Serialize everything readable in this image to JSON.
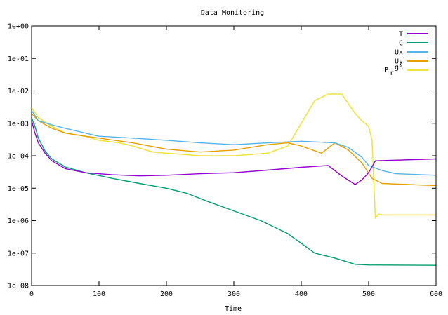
{
  "chart_data": {
    "type": "line",
    "title": "Data Monitoring",
    "xlabel": "Time",
    "ylabel": "",
    "xlim": [
      0,
      600
    ],
    "ylim": [
      1e-08,
      1
    ],
    "yscale": "log",
    "grid": false,
    "legend_position": "top-right",
    "x_ticks": [
      "0",
      "100",
      "200",
      "300",
      "400",
      "500",
      "600"
    ],
    "y_ticks": [
      "1e-08",
      "1e-07",
      "1e-06",
      "1e-05",
      "1e-04",
      "1e-03",
      "1e-02",
      "1e-01",
      "1e+00"
    ],
    "series": [
      {
        "name": "T",
        "color": "#9400d3",
        "x": [
          0,
          5,
          10,
          20,
          30,
          50,
          80,
          120,
          160,
          200,
          250,
          300,
          350,
          400,
          440,
          460,
          480,
          490,
          500,
          510,
          600
        ],
        "y": [
          0.0012,
          0.0005,
          0.00025,
          0.00012,
          7e-05,
          4e-05,
          3e-05,
          2.6e-05,
          2.4e-05,
          2.5e-05,
          2.8e-05,
          3e-05,
          3.6e-05,
          4.4e-05,
          5e-05,
          2.4e-05,
          1.3e-05,
          1.8e-05,
          3e-05,
          7e-05,
          8e-05
        ]
      },
      {
        "name": "C",
        "color": "#009e73",
        "x": [
          0,
          5,
          10,
          20,
          30,
          50,
          80,
          120,
          160,
          200,
          230,
          260,
          300,
          340,
          380,
          400,
          420,
          450,
          480,
          500,
          600
        ],
        "y": [
          0.0015,
          0.0008,
          0.00035,
          0.00014,
          8e-05,
          4.5e-05,
          3e-05,
          2e-05,
          1.4e-05,
          1e-05,
          7e-06,
          4e-06,
          2e-06,
          1e-06,
          4e-07,
          2e-07,
          1e-07,
          7e-08,
          4.5e-08,
          4.3e-08,
          4.2e-08
        ]
      },
      {
        "name": "Ux",
        "color": "#56b4e9",
        "x": [
          0,
          10,
          30,
          50,
          80,
          100,
          150,
          200,
          250,
          300,
          350,
          400,
          450,
          470,
          490,
          500,
          520,
          540,
          600
        ],
        "y": [
          0.0025,
          0.0012,
          0.0009,
          0.0007,
          0.0005,
          0.0004,
          0.00035,
          0.0003,
          0.00025,
          0.00022,
          0.00025,
          0.00028,
          0.00025,
          0.00018,
          9e-05,
          5e-05,
          3.5e-05,
          2.8e-05,
          2.5e-05
        ]
      },
      {
        "name": "Uy",
        "color": "#e69f00",
        "x": [
          0,
          10,
          30,
          50,
          80,
          100,
          150,
          200,
          250,
          300,
          350,
          380,
          400,
          430,
          450,
          470,
          490,
          505,
          520,
          600
        ],
        "y": [
          0.002,
          0.0012,
          0.0007,
          0.0005,
          0.0004,
          0.00035,
          0.00025,
          0.00016,
          0.00013,
          0.00015,
          0.00022,
          0.00025,
          0.0002,
          0.00012,
          0.00025,
          0.00015,
          6e-05,
          2e-05,
          1.4e-05,
          1.2e-05
        ]
      },
      {
        "name": "P_rgh",
        "color": "#f0e442",
        "x": [
          0,
          10,
          30,
          50,
          80,
          100,
          130,
          150,
          180,
          200,
          250,
          300,
          350,
          380,
          400,
          420,
          440,
          460,
          470,
          480,
          490,
          500,
          505,
          510,
          515,
          520,
          600
        ],
        "y": [
          0.003,
          0.0015,
          0.0008,
          0.0005,
          0.0004,
          0.0003,
          0.00025,
          0.0002,
          0.00013,
          0.00012,
          0.0001,
          0.0001,
          0.00012,
          0.0002,
          0.001,
          0.005,
          0.008,
          0.008,
          0.004,
          0.002,
          0.0012,
          0.0008,
          0.0003,
          1.2e-06,
          1.6e-06,
          1.5e-06,
          1.5e-06
        ]
      }
    ]
  }
}
